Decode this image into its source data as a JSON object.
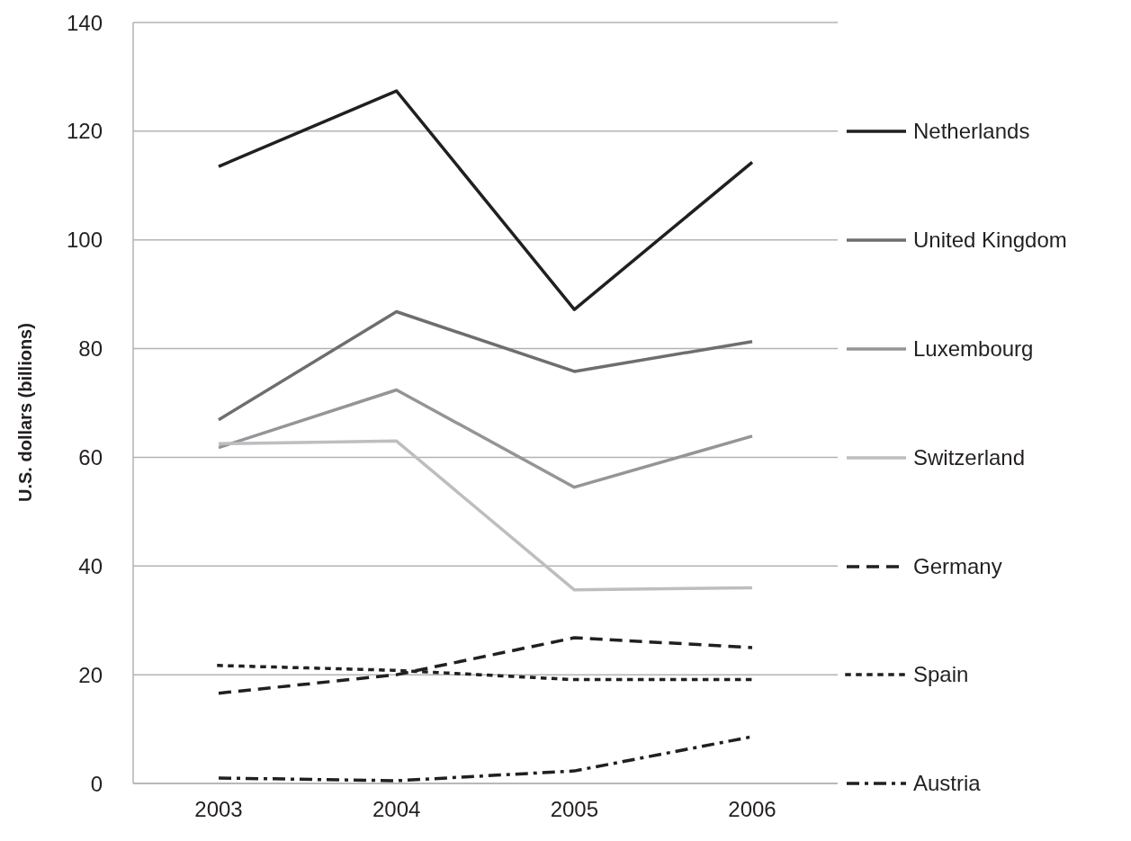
{
  "chart_data": {
    "type": "line",
    "ylabel": "U.S. dollars (billions)",
    "categories": [
      "2003",
      "2004",
      "2005",
      "2006"
    ],
    "ylim": [
      0,
      140
    ],
    "yticks": [
      0,
      20,
      40,
      60,
      80,
      100,
      120,
      140
    ],
    "grid": "y",
    "legend": "right",
    "marker": "none",
    "series": [
      {
        "name": "Netherlands",
        "color": "#231f20",
        "line_style": "solid",
        "values": [
          113.5,
          127.4,
          87.2,
          114.3
        ]
      },
      {
        "name": "United Kingdom",
        "color": "#6d6e71",
        "line_style": "solid",
        "values": [
          66.9,
          86.8,
          75.8,
          81.3
        ]
      },
      {
        "name": "Luxembourg",
        "color": "#939598",
        "line_style": "solid",
        "values": [
          61.8,
          72.4,
          54.5,
          63.9
        ]
      },
      {
        "name": "Switzerland",
        "color": "#bcbec0",
        "line_style": "solid",
        "values": [
          62.5,
          63,
          35.6,
          36
        ]
      },
      {
        "name": "Germany",
        "color": "#231f20",
        "line_style": "dashed",
        "values": [
          16.6,
          20,
          26.8,
          25
        ]
      },
      {
        "name": "Spain",
        "color": "#231f20",
        "line_style": "dotted",
        "values": [
          21.7,
          20.8,
          19.1,
          19.1
        ]
      },
      {
        "name": "Austria",
        "color": "#231f20",
        "line_style": "dashdot",
        "values": [
          1,
          0.5,
          2.3,
          8.6
        ]
      }
    ]
  }
}
